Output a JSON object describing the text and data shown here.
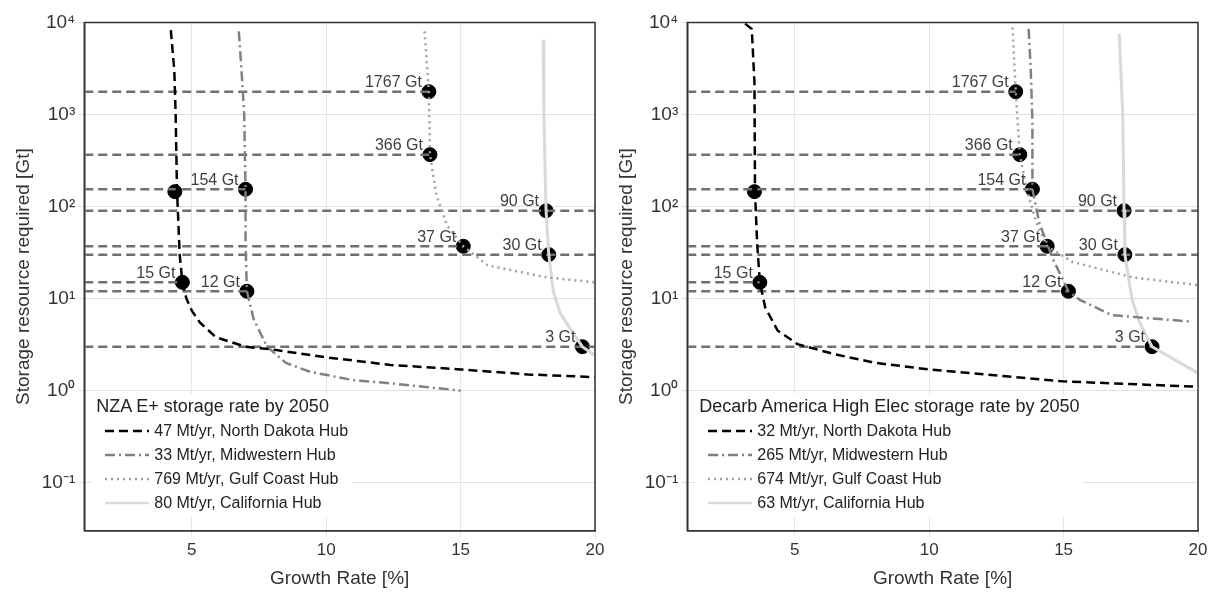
{
  "chart_data": [
    {
      "type": "line",
      "xlabel": "Growth Rate [%]",
      "ylabel": "Storage resource required [Gt]",
      "legend_title": "NZA E+ storage rate by 2050",
      "legend": "bottom left",
      "log": "y",
      "grid": true,
      "xlim": [
        1,
        20
      ],
      "xticks": [
        5,
        10,
        15,
        20
      ],
      "ylim": [
        0.03,
        10000
      ],
      "yticks": [
        {
          "value": 0.1,
          "label": "10⁻¹"
        },
        {
          "value": 1,
          "label": "10⁰"
        },
        {
          "value": 10,
          "label": "10¹"
        },
        {
          "value": 100,
          "label": "10²"
        },
        {
          "value": 1000,
          "label": "10³"
        },
        {
          "value": 10000,
          "label": "10⁴"
        }
      ],
      "series": [
        {
          "name": "47 Mt/yr, North Dakota Hub",
          "type": "line",
          "color": "#000000",
          "line_style": "dashed",
          "x": [
            4.22,
            4.35,
            4.4,
            4.45,
            4.55,
            4.65,
            4.8,
            5.0,
            5.3,
            5.9,
            7,
            8,
            10,
            12.4,
            15,
            17.5,
            20
          ],
          "values": [
            8250,
            3000,
            1000,
            150,
            30,
            15,
            10,
            7.4,
            5.5,
            3.8,
            3.0,
            2.8,
            2.3,
            1.9,
            1.7,
            1.5,
            1.4
          ]
        },
        {
          "name": "33 Mt/yr, Midwestern Hub",
          "type": "line",
          "color": "#808080",
          "line_style": "dashdot",
          "x": [
            6.75,
            6.85,
            6.95,
            7.0,
            7.0,
            7.05,
            7.3,
            7.8,
            8.5,
            9.4,
            11,
            12.4,
            15
          ],
          "values": [
            8000,
            3000,
            1000,
            154,
            40,
            12,
            6,
            3,
            2,
            1.6,
            1.3,
            1.2,
            1.0
          ]
        },
        {
          "name": "769 Mt/yr, Gulf Coast Hub",
          "type": "line",
          "color": "#a0a0a0",
          "line_style": "dotted",
          "x": [
            13.66,
            13.82,
            13.86,
            14.1,
            14.5,
            15.1,
            16.0,
            18.2,
            20
          ],
          "values": [
            8000,
            1767,
            366,
            132,
            62,
            37,
            23,
            17,
            15
          ]
        },
        {
          "name": "80 Mt/yr, California Hub",
          "type": "line",
          "color": "#d9d9d9",
          "line_style": "solid",
          "x": [
            18.07,
            18.1,
            18.15,
            18.18,
            18.28,
            18.45,
            18.7,
            19.1,
            19.53,
            20
          ],
          "values": [
            6300,
            1000,
            200,
            90,
            30,
            12,
            7,
            4.6,
            3,
            2.4
          ]
        },
        {
          "type": "line",
          "color": "#707070",
          "line_style": "dashed",
          "x": [
            1,
            13.82
          ],
          "values": [
            1767,
            1767
          ]
        },
        {
          "type": "line",
          "color": "#707070",
          "line_style": "dashed",
          "x": [
            1,
            13.86
          ],
          "values": [
            366,
            366
          ]
        },
        {
          "type": "line",
          "color": "#707070",
          "line_style": "dashed",
          "x": [
            1,
            7.0
          ],
          "values": [
            154,
            154
          ]
        },
        {
          "type": "line",
          "color": "#707070",
          "line_style": "dashed",
          "x": [
            1,
            20
          ],
          "values": [
            90,
            90
          ]
        },
        {
          "type": "line",
          "color": "#707070",
          "line_style": "dashed",
          "x": [
            1,
            15.1
          ],
          "values": [
            37,
            37
          ]
        },
        {
          "type": "line",
          "color": "#707070",
          "line_style": "dashed",
          "x": [
            1,
            20
          ],
          "values": [
            30,
            30
          ]
        },
        {
          "type": "line",
          "color": "#707070",
          "line_style": "dashed",
          "x": [
            1,
            4.65
          ],
          "values": [
            15,
            15
          ]
        },
        {
          "type": "line",
          "color": "#707070",
          "line_style": "dashed",
          "x": [
            1,
            7.05
          ],
          "values": [
            12,
            12
          ]
        },
        {
          "type": "line",
          "color": "#707070",
          "line_style": "dashed",
          "x": [
            1,
            20
          ],
          "values": [
            3,
            3
          ]
        },
        {
          "type": "scatter",
          "color": "#000000",
          "marker": "circle",
          "x": [
            13.82,
            13.86,
            4.37,
            7.0,
            18.18,
            15.1,
            18.28,
            4.65,
            7.05,
            19.53
          ],
          "values": [
            1767,
            366,
            145,
            154,
            90,
            37,
            30,
            15,
            12,
            3
          ]
        }
      ],
      "annotations": [
        {
          "text": "1767 Gt",
          "x": 13.82,
          "y": 1767
        },
        {
          "text": "366 Gt",
          "x": 13.86,
          "y": 366
        },
        {
          "text": "154 Gt",
          "x": 7.0,
          "y": 154
        },
        {
          "text": "90 Gt",
          "x": 18.18,
          "y": 90
        },
        {
          "text": "37 Gt",
          "x": 15.1,
          "y": 37
        },
        {
          "text": "30 Gt",
          "x": 18.28,
          "y": 30
        },
        {
          "text": "15 Gt",
          "x": 4.65,
          "y": 15
        },
        {
          "text": "12 Gt",
          "x": 7.05,
          "y": 12
        },
        {
          "text": "3 Gt",
          "x": 19.53,
          "y": 3
        }
      ]
    },
    {
      "type": "line",
      "xlabel": "Growth Rate [%]",
      "ylabel": "Storage resource required [Gt]",
      "legend_title": "Decarb America High Elec storage rate by 2050",
      "legend": "bottom left",
      "log": "y",
      "grid": true,
      "xlim": [
        1,
        20
      ],
      "xticks": [
        5,
        10,
        15,
        20
      ],
      "ylim": [
        0.03,
        10000
      ],
      "yticks": [
        {
          "value": 0.1,
          "label": "10⁻¹"
        },
        {
          "value": 1,
          "label": "10⁰"
        },
        {
          "value": 10,
          "label": "10¹"
        },
        {
          "value": 100,
          "label": "10²"
        },
        {
          "value": 1000,
          "label": "10³"
        },
        {
          "value": 10000,
          "label": "10⁴"
        }
      ],
      "series": [
        {
          "name": "32 Mt/yr, North Dakota Hub",
          "type": "line",
          "color": "#000000",
          "line_style": "dashed",
          "x": [
            3.15,
            3.4,
            3.5,
            3.52,
            3.6,
            3.7,
            3.9,
            4.36,
            5.1,
            6.44,
            8,
            10,
            15,
            20
          ],
          "values": [
            9700,
            8500,
            2200,
            145,
            40,
            15,
            8,
            4.5,
            3.2,
            2.5,
            2.0,
            1.7,
            1.26,
            1.1
          ]
        },
        {
          "name": "265 Mt/yr, Midwestern Hub",
          "type": "line",
          "color": "#808080",
          "line_style": "dashdot",
          "x": [
            13.7,
            13.78,
            13.84,
            13.84,
            14.1,
            14.6,
            15.18,
            15.6,
            16.8,
            19.8
          ],
          "values": [
            8500,
            3000,
            830,
            154,
            66,
            27,
            12,
            9.7,
            6.6,
            5.6
          ]
        },
        {
          "name": "674 Mt/yr, Gulf Coast Hub",
          "type": "line",
          "color": "#a0a0a0",
          "line_style": "dotted",
          "x": [
            13.1,
            13.22,
            13.37,
            13.62,
            13.99,
            14.39,
            15.33,
            17.55,
            20
          ],
          "values": [
            8800,
            1767,
            366,
            158,
            66,
            37,
            25,
            17,
            14
          ]
        },
        {
          "name": "63 Mt/yr, California Hub",
          "type": "line",
          "color": "#d9d9d9",
          "line_style": "solid",
          "x": [
            17.07,
            17.2,
            17.25,
            17.28,
            17.55,
            17.84,
            18.29,
            20
          ],
          "values": [
            7500,
            1000,
            90,
            30,
            9.7,
            5.4,
            3,
            1.55
          ]
        },
        {
          "type": "line",
          "color": "#707070",
          "line_style": "dashed",
          "x": [
            1,
            13.22
          ],
          "values": [
            1767,
            1767
          ]
        },
        {
          "type": "line",
          "color": "#707070",
          "line_style": "dashed",
          "x": [
            1,
            13.37
          ],
          "values": [
            366,
            366
          ]
        },
        {
          "type": "line",
          "color": "#707070",
          "line_style": "dashed",
          "x": [
            1,
            13.84
          ],
          "values": [
            154,
            154
          ]
        },
        {
          "type": "line",
          "color": "#707070",
          "line_style": "dashed",
          "x": [
            1,
            20
          ],
          "values": [
            90,
            90
          ]
        },
        {
          "type": "line",
          "color": "#707070",
          "line_style": "dashed",
          "x": [
            1,
            14.39
          ],
          "values": [
            37,
            37
          ]
        },
        {
          "type": "line",
          "color": "#707070",
          "line_style": "dashed",
          "x": [
            1,
            20
          ],
          "values": [
            30,
            30
          ]
        },
        {
          "type": "line",
          "color": "#707070",
          "line_style": "dashed",
          "x": [
            1,
            3.7
          ],
          "values": [
            15,
            15
          ]
        },
        {
          "type": "line",
          "color": "#707070",
          "line_style": "dashed",
          "x": [
            1,
            15.18
          ],
          "values": [
            12,
            12
          ]
        },
        {
          "type": "line",
          "color": "#707070",
          "line_style": "dashed",
          "x": [
            1,
            18.29
          ],
          "values": [
            3,
            3
          ]
        },
        {
          "type": "scatter",
          "color": "#000000",
          "marker": "circle",
          "x": [
            13.22,
            13.37,
            3.5,
            13.84,
            17.25,
            14.39,
            17.28,
            3.7,
            15.18,
            18.29
          ],
          "values": [
            1767,
            366,
            145,
            154,
            90,
            37,
            30,
            15,
            12,
            3
          ]
        }
      ],
      "annotations": [
        {
          "text": "1767 Gt",
          "x": 13.22,
          "y": 1767
        },
        {
          "text": "366 Gt",
          "x": 13.37,
          "y": 366
        },
        {
          "text": "154 Gt",
          "x": 13.84,
          "y": 154
        },
        {
          "text": "90 Gt",
          "x": 17.25,
          "y": 90
        },
        {
          "text": "37 Gt",
          "x": 14.39,
          "y": 37
        },
        {
          "text": "30 Gt",
          "x": 17.28,
          "y": 30
        },
        {
          "text": "15 Gt",
          "x": 3.7,
          "y": 15
        },
        {
          "text": "12 Gt",
          "x": 15.18,
          "y": 12
        },
        {
          "text": "3 Gt",
          "x": 18.29,
          "y": 3
        }
      ]
    }
  ]
}
